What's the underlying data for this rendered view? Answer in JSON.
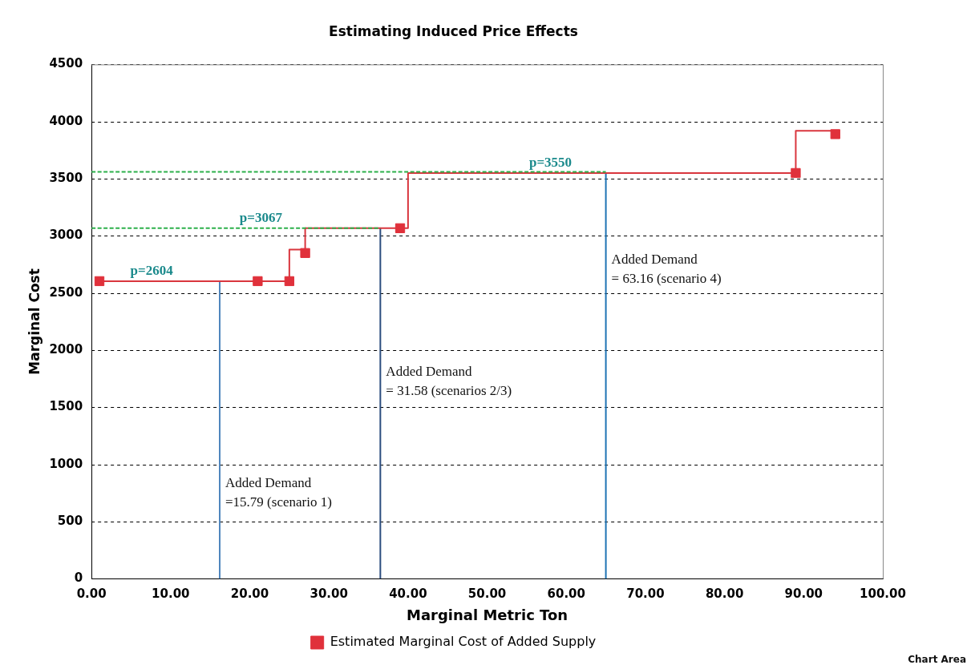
{
  "chart_data": {
    "type": "scatter",
    "title": "Estimating Induced Price Effects",
    "xlabel": "Marginal Metric Ton",
    "ylabel": "Marginal Cost",
    "xlim": [
      0,
      100
    ],
    "xticks": [
      {
        "value": 0,
        "label": "0.00"
      },
      {
        "value": 10,
        "label": "10.00"
      },
      {
        "value": 20,
        "label": "20.00"
      },
      {
        "value": 30,
        "label": "30.00"
      },
      {
        "value": 40,
        "label": "40.00"
      },
      {
        "value": 50,
        "label": "50.00"
      },
      {
        "value": 60,
        "label": "60.00"
      },
      {
        "value": 70,
        "label": "70.00"
      },
      {
        "value": 80,
        "label": "80.00"
      },
      {
        "value": 90,
        "label": "90.00"
      },
      {
        "value": 100,
        "label": "100.00"
      }
    ],
    "ylim": [
      0,
      4500
    ],
    "yticks": [
      0,
      500,
      1000,
      1500,
      2000,
      2500,
      3000,
      3500,
      4000,
      4500
    ],
    "grid": "y",
    "legend": "bottom",
    "series": [
      {
        "name": "Estimated Marginal Cost of Added Supply",
        "marker": "square",
        "color": "#e0313b",
        "x": [
          1,
          21,
          25,
          27,
          39,
          89,
          94
        ],
        "values": [
          2604,
          2604,
          2604,
          2850,
          3067,
          3550,
          3890
        ]
      },
      {
        "type": "line",
        "marker": "none",
        "color": "#d9363e",
        "line_style": "solid",
        "x": [
          1,
          25,
          25,
          27,
          27,
          40,
          40,
          89,
          89,
          94
        ],
        "values": [
          2604,
          2604,
          2880,
          2880,
          3067,
          3067,
          3550,
          3550,
          3920,
          3920
        ]
      },
      {
        "type": "line",
        "marker": "none",
        "color": "#2db04b",
        "line_style": "dashed",
        "x": [
          0,
          36.5
        ],
        "values": [
          3067,
          3067
        ]
      },
      {
        "type": "line",
        "marker": "none",
        "color": "#2db04b",
        "line_style": "dashed",
        "x": [
          0,
          65
        ],
        "values": [
          3560,
          3560
        ]
      },
      {
        "type": "line",
        "marker": "none",
        "color": "#4f86bd",
        "line_style": "solid",
        "x": [
          16.2,
          16.2
        ],
        "values": [
          0,
          2604
        ]
      },
      {
        "type": "line",
        "marker": "none",
        "color": "#2b4d7e",
        "line_style": "solid",
        "x": [
          36.5,
          36.5
        ],
        "values": [
          0,
          3067
        ]
      },
      {
        "type": "line",
        "marker": "none",
        "color": "#1f74b4",
        "line_style": "solid",
        "x": [
          65,
          65
        ],
        "values": [
          0,
          3550
        ]
      }
    ],
    "annotations": [
      {
        "text": "p=2604",
        "x": 7.6,
        "y": 2604
      },
      {
        "text": "p=3067",
        "x": 21.4,
        "y": 3067
      },
      {
        "text": "p=3550",
        "x": 58,
        "y": 3550
      },
      {
        "text": "Added Demand\n=15.79 (scenario 1)",
        "x": 16.2,
        "y": 890
      },
      {
        "text": "Added Demand\n= 31.58 (scenarios 2/3)",
        "x": 36.5,
        "y": 1870
      },
      {
        "text": "Added Demand\n= 63.16 (scenario 4)",
        "x": 65,
        "y": 2850
      },
      "Chart Area"
    ]
  }
}
